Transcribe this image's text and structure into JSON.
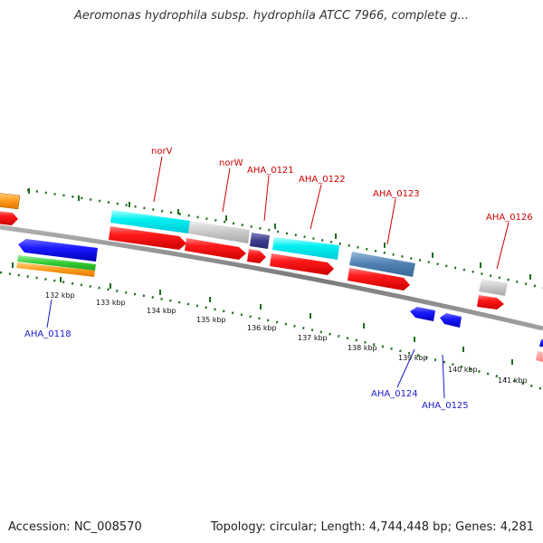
{
  "title": "Aeromonas hydrophila subsp. hydrophila ATCC 7966, complete g...",
  "footer": {
    "accession": "Accession: NC_008570",
    "summary": "Topology: circular; Length: 4,744,448 bp; Genes: 4,281"
  },
  "colors": {
    "backbone": "#8c8c8c",
    "tick": "#1c6e1c",
    "top_label": "#cc0000",
    "bottom_label": "#1a1acc",
    "kbp_label": "#111111"
  },
  "scale": {
    "unit": "kbp",
    "ticks": [
      {
        "label": "132 kbp"
      },
      {
        "label": "133 kbp"
      },
      {
        "label": "134 kbp"
      },
      {
        "label": "135 kbp"
      },
      {
        "label": "136 kbp"
      },
      {
        "label": "137 kbp"
      },
      {
        "label": "138 kbp"
      },
      {
        "label": "139 kbp"
      },
      {
        "label": "140 kbp"
      },
      {
        "label": "141 kbp"
      }
    ]
  },
  "gene_labels": {
    "top": [
      "norV",
      "norW",
      "AHA_0121",
      "AHA_0122",
      "AHA_0123",
      "AHA_0126"
    ],
    "bottom": [
      "AHA_0118",
      "AHA_0124",
      "AHA_0125"
    ]
  },
  "feature_colors": [
    "orange",
    "red",
    "cyan",
    "silver",
    "dark-slate-blue",
    "steel-blue",
    "blue",
    "green",
    "dark-orange",
    "light-red"
  ]
}
